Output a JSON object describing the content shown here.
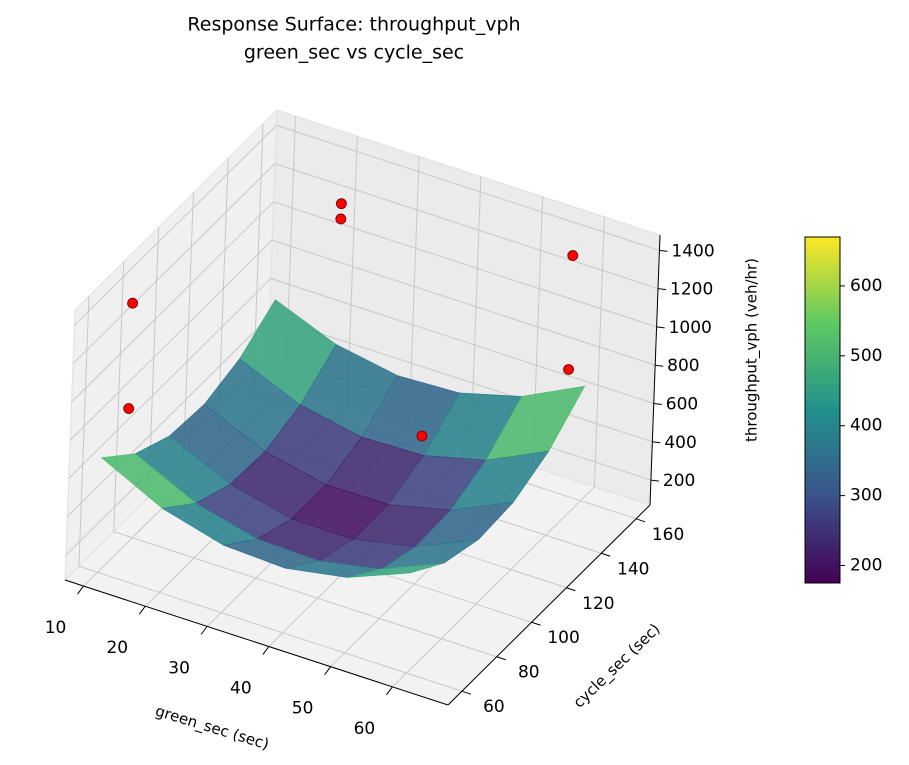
{
  "chart_data": {
    "type": "surface",
    "title": "Response Surface: throughput_vph",
    "subtitle": "green_sec vs cycle_sec",
    "xlabel": "green_sec (sec)",
    "ylabel": "cycle_sec (sec)",
    "zlabel": "throughput_vph (veh/hr)",
    "xlim": [
      7,
      69
    ],
    "ylim": [
      52,
      168
    ],
    "zlim": [
      70,
      1480
    ],
    "xticks": [
      10,
      20,
      30,
      40,
      50,
      60
    ],
    "yticks": [
      60,
      80,
      100,
      120,
      140,
      160
    ],
    "zticks": [
      200,
      400,
      600,
      800,
      1000,
      1200,
      1400
    ],
    "grid": true,
    "surface": {
      "x": [
        10,
        20,
        30,
        40,
        50,
        60
      ],
      "y": [
        60,
        80,
        100,
        120,
        140,
        160
      ],
      "z": [
        [
          668,
          509,
          422,
          407,
          464,
          593
        ],
        [
          509,
          356,
          275,
          266,
          329,
          464
        ],
        [
          422,
          275,
          200,
          197,
          266,
          407
        ],
        [
          407,
          266,
          197,
          200,
          275,
          422
        ],
        [
          464,
          329,
          266,
          275,
          356,
          509
        ],
        [
          593,
          464,
          407,
          422,
          509,
          668
        ]
      ],
      "colormap": [
        "#440154",
        "#3b528b",
        "#21918c",
        "#5ec962",
        "#fde725"
      ]
    },
    "scatter": {
      "x": [
        10,
        10,
        20,
        20,
        45,
        60,
        60
      ],
      "y": [
        75,
        75,
        160,
        160,
        120,
        150,
        150
      ],
      "z": [
        1340,
        790,
        1200,
        1120,
        610,
        1440,
        845
      ],
      "color": "#ff0000"
    },
    "colorbar": {
      "clim": [
        175,
        670
      ],
      "ticks": [
        200,
        300,
        400,
        500,
        600
      ]
    }
  }
}
